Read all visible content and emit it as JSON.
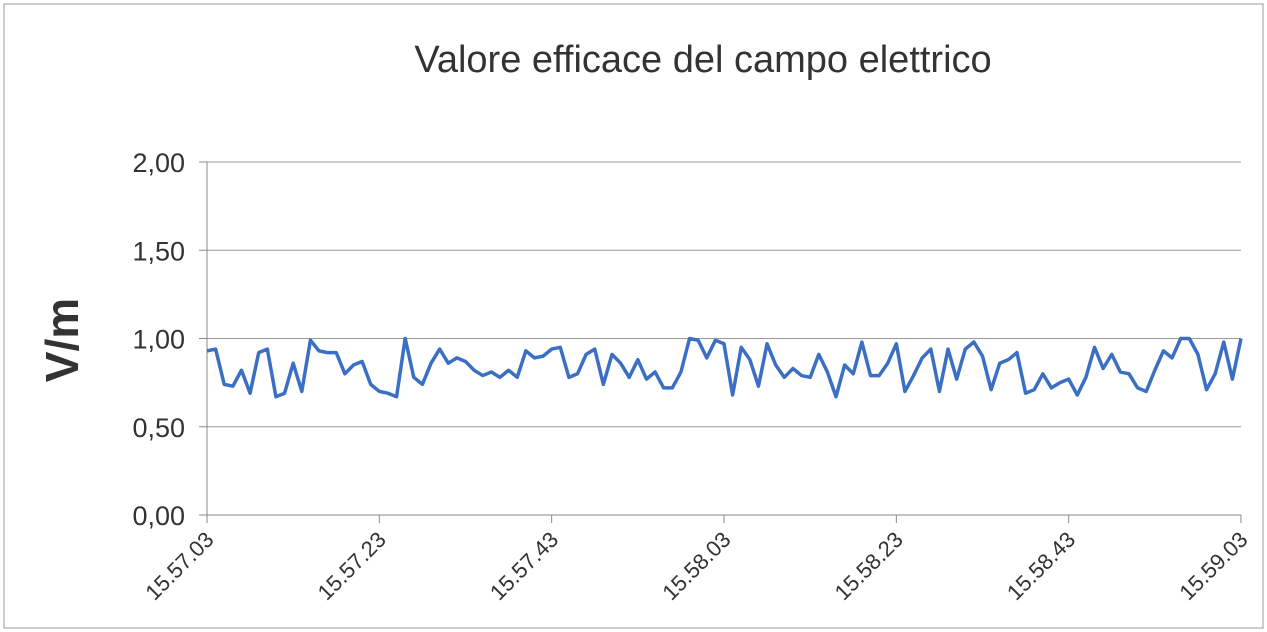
{
  "chart_data": {
    "type": "line",
    "title": "Valore efficace del campo elettrico",
    "y_label": "V/m",
    "categories": [
      "15.57.03",
      null,
      null,
      null,
      null,
      null,
      null,
      null,
      null,
      null,
      null,
      null,
      null,
      null,
      null,
      null,
      null,
      null,
      null,
      null,
      "15.57.23",
      null,
      null,
      null,
      null,
      null,
      null,
      null,
      null,
      null,
      null,
      null,
      null,
      null,
      null,
      null,
      null,
      null,
      null,
      null,
      "15.57.43",
      null,
      null,
      null,
      null,
      null,
      null,
      null,
      null,
      null,
      null,
      null,
      null,
      null,
      null,
      null,
      null,
      null,
      null,
      null,
      "15.58.03",
      null,
      null,
      null,
      null,
      null,
      null,
      null,
      null,
      null,
      null,
      null,
      null,
      null,
      null,
      null,
      null,
      null,
      null,
      null,
      "15.58.23",
      null,
      null,
      null,
      null,
      null,
      null,
      null,
      null,
      null,
      null,
      null,
      null,
      null,
      null,
      null,
      null,
      null,
      null,
      null,
      "15.58.43",
      null,
      null,
      null,
      null,
      null,
      null,
      null,
      null,
      null,
      null,
      null,
      null,
      null,
      null,
      null,
      null,
      null,
      null,
      null,
      "15.59.03"
    ],
    "series": [
      {
        "name": "V/m",
        "color": "#3a6fc4",
        "values": [
          0.93,
          0.94,
          0.74,
          0.73,
          0.82,
          0.69,
          0.92,
          0.94,
          0.67,
          0.69,
          0.86,
          0.7,
          0.99,
          0.93,
          0.92,
          0.92,
          0.8,
          0.85,
          0.87,
          0.74,
          0.7,
          0.69,
          0.67,
          1.0,
          0.78,
          0.74,
          0.86,
          0.94,
          0.86,
          0.89,
          0.87,
          0.82,
          0.79,
          0.81,
          0.78,
          0.82,
          0.78,
          0.93,
          0.89,
          0.9,
          0.94,
          0.95,
          0.78,
          0.8,
          0.91,
          0.94,
          0.74,
          0.91,
          0.86,
          0.78,
          0.88,
          0.77,
          0.81,
          0.72,
          0.72,
          0.81,
          1.0,
          0.99,
          0.89,
          0.99,
          0.97,
          0.68,
          0.95,
          0.88,
          0.73,
          0.97,
          0.85,
          0.78,
          0.83,
          0.79,
          0.78,
          0.91,
          0.81,
          0.67,
          0.85,
          0.8,
          0.98,
          0.79,
          0.79,
          0.86,
          0.97,
          0.7,
          0.79,
          0.89,
          0.94,
          0.7,
          0.94,
          0.77,
          0.94,
          0.98,
          0.9,
          0.71,
          0.86,
          0.88,
          0.92,
          0.69,
          0.71,
          0.8,
          0.72,
          0.75,
          0.77,
          0.68,
          0.78,
          0.95,
          0.83,
          0.91,
          0.81,
          0.8,
          0.72,
          0.7,
          0.82,
          0.93,
          0.89,
          1.0,
          1.0,
          0.91,
          0.71,
          0.8,
          0.98,
          0.77,
          1.0
        ]
      }
    ],
    "ylim": [
      0,
      2
    ],
    "yticks": [
      {
        "value": 0,
        "label": "0,00"
      },
      {
        "value": 0.5,
        "label": "0,50"
      },
      {
        "value": 1,
        "label": "1,00"
      },
      {
        "value": 1.5,
        "label": "1,50"
      },
      {
        "value": 2,
        "label": "2,00"
      }
    ],
    "grid": true
  }
}
